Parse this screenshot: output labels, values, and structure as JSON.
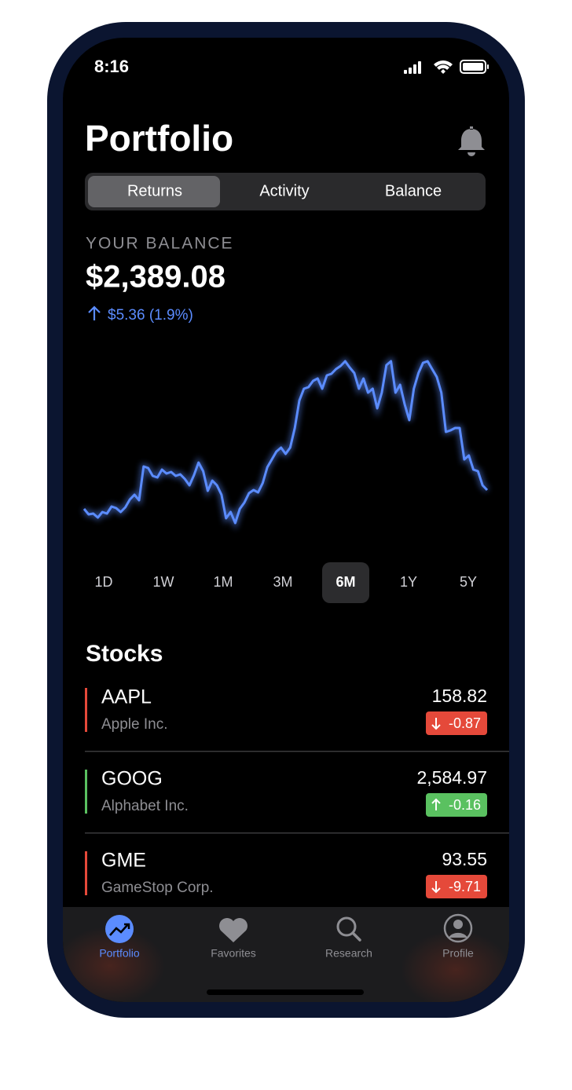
{
  "status": {
    "time": "8:16"
  },
  "header": {
    "title": "Portfolio"
  },
  "segments": {
    "items": [
      "Returns",
      "Activity",
      "Balance"
    ],
    "selected": 0
  },
  "balance": {
    "label": "YOUR BALANCE",
    "amount": "$2,389.08",
    "change": "$5.36 (1.9%)"
  },
  "chart": {
    "color": "#5b8cff",
    "values": [
      32,
      25,
      26,
      21,
      28,
      26,
      35,
      33,
      28,
      34,
      44,
      50,
      43,
      86,
      84,
      74,
      72,
      82,
      77,
      79,
      74,
      76,
      70,
      62,
      75,
      91,
      80,
      55,
      68,
      62,
      50,
      20,
      28,
      14,
      32,
      40,
      52,
      56,
      53,
      65,
      85,
      95,
      105,
      110,
      102,
      110,
      135,
      170,
      185,
      187,
      195,
      198,
      185,
      202,
      204,
      210,
      214,
      220,
      212,
      205,
      185,
      198,
      180,
      185,
      160,
      180,
      215,
      220,
      180,
      190,
      165,
      145,
      185,
      205,
      218,
      220,
      210,
      200,
      180,
      130,
      132,
      135,
      135,
      95,
      100,
      82,
      80,
      62,
      56
    ]
  },
  "ranges": {
    "items": [
      "1D",
      "1W",
      "1M",
      "3M",
      "6M",
      "1Y",
      "5Y"
    ],
    "selected": 4
  },
  "stocks": {
    "title": "Stocks",
    "items": [
      {
        "symbol": "AAPL",
        "name": "Apple Inc.",
        "price": "158.82",
        "change": "-0.87",
        "trend": "down"
      },
      {
        "symbol": "GOOG",
        "name": "Alphabet Inc.",
        "price": "2,584.97",
        "change": "-0.16",
        "trend": "up"
      },
      {
        "symbol": "GME",
        "name": "GameStop Corp.",
        "price": "93.55",
        "change": "-9.71",
        "trend": "down"
      }
    ]
  },
  "tab_bar": {
    "items": [
      "Portfolio",
      "Favorites",
      "Research",
      "Profile"
    ],
    "selected": 0
  }
}
